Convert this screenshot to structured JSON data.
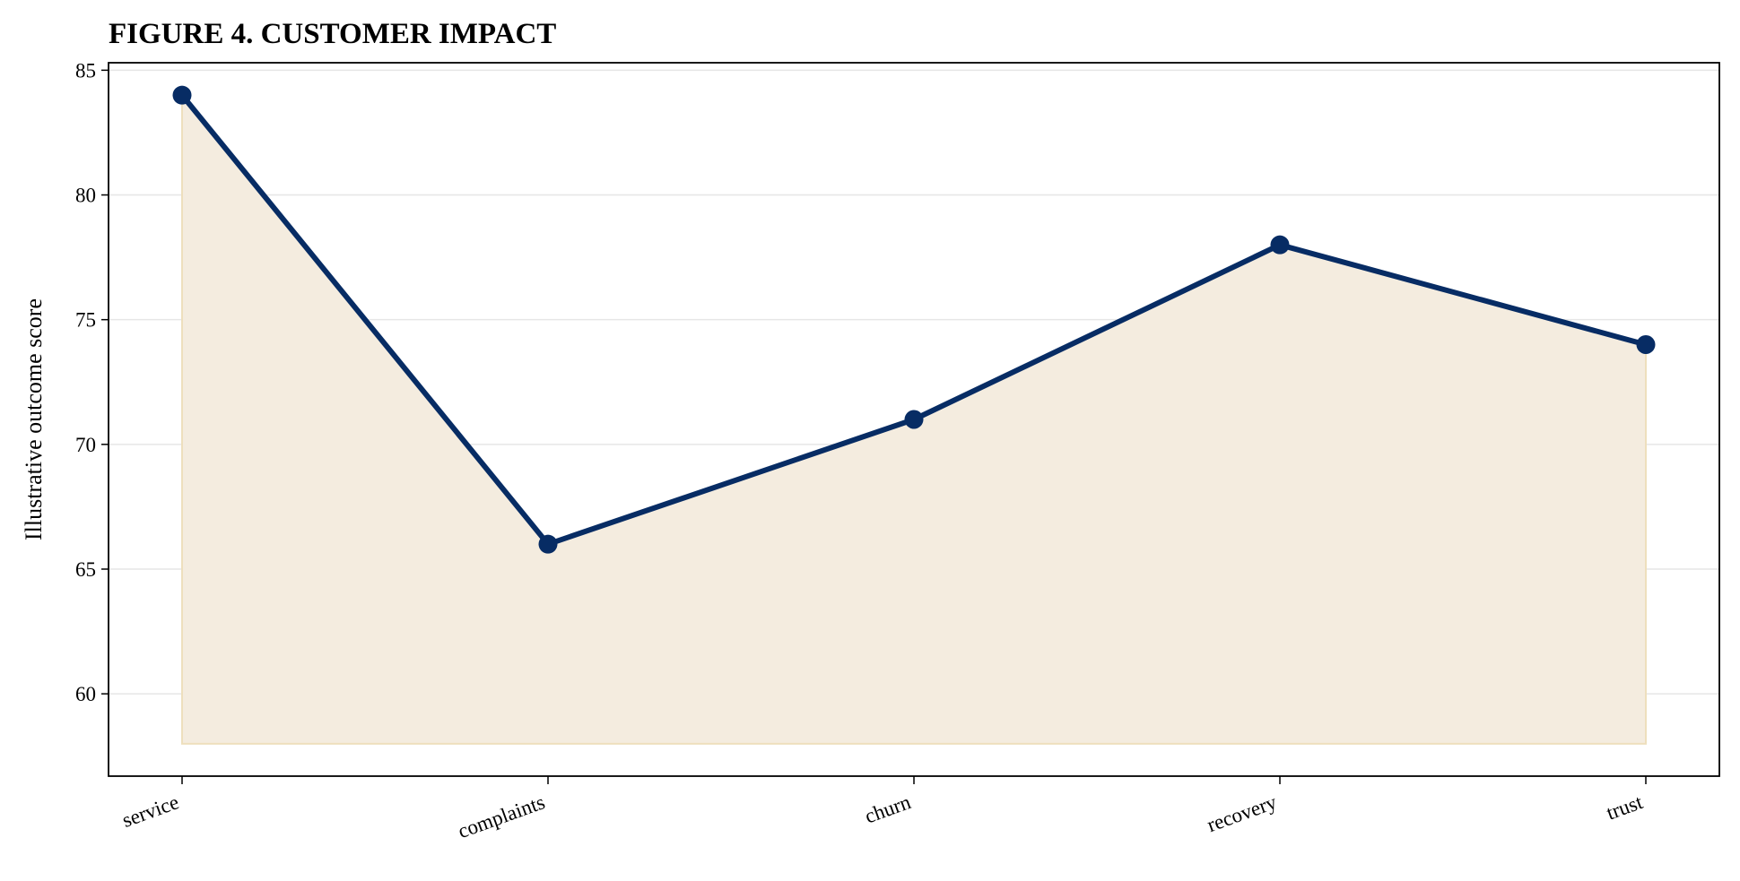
{
  "chart_data": {
    "type": "line",
    "title": "FIGURE 4. CUSTOMER IMPACT",
    "xlabel": "",
    "ylabel": "Illustrative outcome score",
    "categories": [
      "service",
      "complaints",
      "churn",
      "recovery",
      "trust"
    ],
    "series": [
      {
        "values": [
          84,
          66,
          71,
          78,
          74
        ]
      }
    ],
    "ylim": [
      56.7,
      85.3
    ],
    "yticks": [
      60,
      65,
      70,
      75,
      80,
      85
    ],
    "area_baseline": 58,
    "grid": "horizontal",
    "legend": "none",
    "colors": {
      "line": "#072c64",
      "fill": "#f4ecdf",
      "fill_edge": "#eedfbd",
      "grid": "#e6e6e6"
    }
  }
}
